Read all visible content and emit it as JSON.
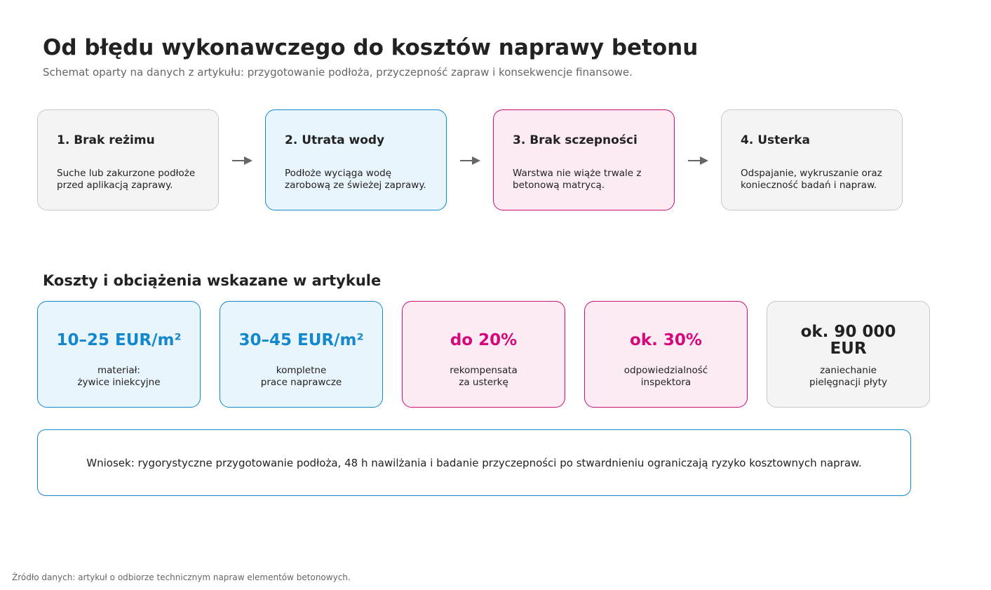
{
  "header": {
    "title": "Od błędu wykonawczego do kosztów naprawy betonu",
    "subtitle": "Schemat oparty na danych z artykułu: przygotowanie podłoża, przyczepność zapraw i konsekwencje finansowe."
  },
  "colors": {
    "gray_border": "#c8c8c8",
    "gray_fill": "#f4f4f4",
    "blue_border": "#1488cc",
    "blue_fill": "#e8f5fc",
    "magenta_border": "#cc0f78",
    "magenta_fill": "#fdebf4",
    "blue_text": "#1488cc",
    "magenta_text": "#d4087a",
    "arrow": "#666666"
  },
  "flow": {
    "steps": [
      {
        "title": "1. Brak reżimu",
        "text": "Suche lub zakurzone podłoże przed aplikacją zaprawy.",
        "style": "gray"
      },
      {
        "title": "2. Utrata wody",
        "text": "Podłoże wyciąga wodę zarobową ze świeżej zaprawy.",
        "style": "blue"
      },
      {
        "title": "3. Brak sczepności",
        "text": "Warstwa nie wiąże trwale z betonową matrycą.",
        "style": "magenta"
      },
      {
        "title": "4. Usterka",
        "text": "Odspajanie, wykruszanie oraz konieczność badań i napraw.",
        "style": "gray"
      }
    ]
  },
  "costs": {
    "title": "Koszty i obciążenia wskazane w artykule",
    "cards": [
      {
        "value": "10–25 EUR/m²",
        "label_line1": "materiał:",
        "label_line2": "żywice iniekcyjne",
        "style": "blue"
      },
      {
        "value": "30–45 EUR/m²",
        "label_line1": "kompletne",
        "label_line2": "prace naprawcze",
        "style": "blue"
      },
      {
        "value": "do 20%",
        "label_line1": "rekompensata",
        "label_line2": "za usterkę",
        "style": "magenta"
      },
      {
        "value": "ok. 30%",
        "label_line1": "odpowiedzialność",
        "label_line2": "inspektora",
        "style": "magenta"
      },
      {
        "value": "ok. 90 000 EUR",
        "label_line1": "zaniechanie",
        "label_line2": "pielęgnacji płyty",
        "style": "gray"
      }
    ]
  },
  "conclusion": "Wniosek: rygorystyczne przygotowanie podłoża, 48 h nawilżania i badanie przyczepności po stwardnieniu ograniczają ryzyko kosztownych napraw.",
  "source": "Źródło danych: artykuł o odbiorze technicznym napraw elementów betonowych."
}
